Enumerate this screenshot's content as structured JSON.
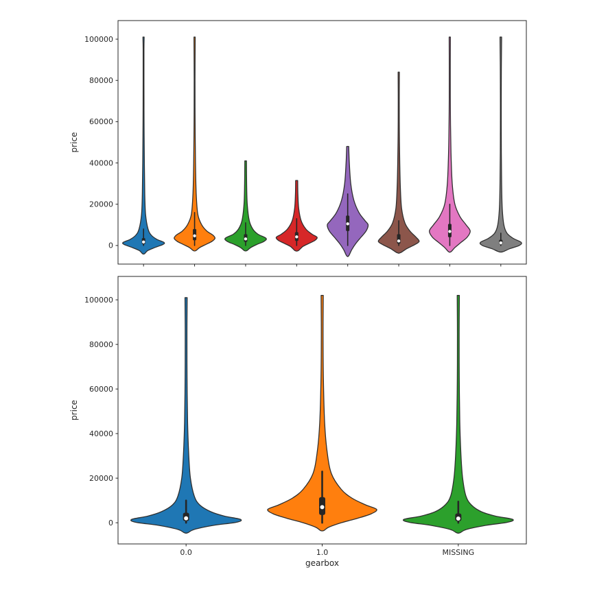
{
  "figure": {
    "background": "#ffffff",
    "text_color": "#262626"
  },
  "chart_data": [
    {
      "type": "violin",
      "name": "price-violin-8-groups",
      "title": "",
      "xlabel": "",
      "ylabel": "price",
      "ylim": [
        -9000,
        109000
      ],
      "yticks": [
        0,
        20000,
        40000,
        60000,
        80000,
        100000
      ],
      "grid": false,
      "show_x_ticklabels": false,
      "categories": [
        "",
        "",
        "",
        "",
        "",
        "",
        "",
        ""
      ],
      "edge_color": "#2f2f2f",
      "box_color": "#262626",
      "median_dot_color": "#ffffff",
      "violins": [
        {
          "color": "#1f77b4",
          "profile": [
            [
              101000,
              0.03
            ],
            [
              95000,
              0.02
            ],
            [
              80000,
              0.02
            ],
            [
              60000,
              0.025
            ],
            [
              40000,
              0.04
            ],
            [
              25000,
              0.06
            ],
            [
              15000,
              0.1
            ],
            [
              8000,
              0.22
            ],
            [
              5000,
              0.38
            ],
            [
              3000,
              0.65
            ],
            [
              1500,
              1.0
            ],
            [
              500,
              0.95
            ],
            [
              -1000,
              0.55
            ],
            [
              -2500,
              0.2
            ],
            [
              -4000,
              0.05
            ]
          ],
          "box": {
            "lo": 0,
            "q1": 700,
            "med": 1700,
            "q3": 3600,
            "hi": 8000
          }
        },
        {
          "color": "#ff7f0e",
          "profile": [
            [
              101000,
              0.03
            ],
            [
              80000,
              0.02
            ],
            [
              60000,
              0.025
            ],
            [
              40000,
              0.045
            ],
            [
              25000,
              0.08
            ],
            [
              15000,
              0.16
            ],
            [
              10000,
              0.35
            ],
            [
              7000,
              0.6
            ],
            [
              5000,
              0.9
            ],
            [
              3500,
              1.0
            ],
            [
              2000,
              0.85
            ],
            [
              500,
              0.55
            ],
            [
              -1000,
              0.25
            ],
            [
              -2500,
              0.06
            ]
          ],
          "box": {
            "lo": 0,
            "q1": 2500,
            "med": 4700,
            "q3": 8000,
            "hi": 16000
          }
        },
        {
          "color": "#2ca02c",
          "profile": [
            [
              41000,
              0.04
            ],
            [
              30000,
              0.05
            ],
            [
              20000,
              0.08
            ],
            [
              12000,
              0.18
            ],
            [
              8000,
              0.35
            ],
            [
              5500,
              0.6
            ],
            [
              3500,
              1.0
            ],
            [
              2000,
              0.9
            ],
            [
              500,
              0.55
            ],
            [
              -1000,
              0.25
            ],
            [
              -2500,
              0.06
            ]
          ],
          "box": {
            "lo": 0,
            "q1": 1700,
            "med": 3200,
            "q3": 5500,
            "hi": 11000
          }
        },
        {
          "color": "#d62728",
          "profile": [
            [
              31500,
              0.05
            ],
            [
              25000,
              0.06
            ],
            [
              18000,
              0.1
            ],
            [
              12000,
              0.22
            ],
            [
              8000,
              0.45
            ],
            [
              5500,
              0.75
            ],
            [
              4000,
              1.0
            ],
            [
              2500,
              0.9
            ],
            [
              1000,
              0.6
            ],
            [
              -500,
              0.3
            ],
            [
              -2500,
              0.08
            ]
          ],
          "box": {
            "lo": 0,
            "q1": 2200,
            "med": 4200,
            "q3": 6500,
            "hi": 13000
          }
        },
        {
          "color": "#9467bd",
          "profile": [
            [
              48000,
              0.05
            ],
            [
              40000,
              0.08
            ],
            [
              30000,
              0.15
            ],
            [
              22000,
              0.3
            ],
            [
              16000,
              0.55
            ],
            [
              12000,
              0.85
            ],
            [
              10000,
              1.0
            ],
            [
              7000,
              0.9
            ],
            [
              4000,
              0.65
            ],
            [
              1000,
              0.4
            ],
            [
              -2000,
              0.2
            ],
            [
              -5000,
              0.05
            ]
          ],
          "box": {
            "lo": 0,
            "q1": 7000,
            "med": 10500,
            "q3": 14500,
            "hi": 25000
          }
        },
        {
          "color": "#8c564b",
          "profile": [
            [
              84000,
              0.03
            ],
            [
              70000,
              0.025
            ],
            [
              55000,
              0.03
            ],
            [
              40000,
              0.05
            ],
            [
              28000,
              0.08
            ],
            [
              18000,
              0.14
            ],
            [
              11000,
              0.3
            ],
            [
              7000,
              0.55
            ],
            [
              4000,
              0.85
            ],
            [
              2000,
              1.0
            ],
            [
              500,
              0.8
            ],
            [
              -1500,
              0.4
            ],
            [
              -3500,
              0.08
            ]
          ],
          "box": {
            "lo": 0,
            "q1": 900,
            "med": 2200,
            "q3": 5500,
            "hi": 12000
          }
        },
        {
          "color": "#e377c2",
          "profile": [
            [
              101000,
              0.03
            ],
            [
              85000,
              0.025
            ],
            [
              65000,
              0.03
            ],
            [
              45000,
              0.06
            ],
            [
              30000,
              0.12
            ],
            [
              20000,
              0.25
            ],
            [
              14000,
              0.5
            ],
            [
              10000,
              0.8
            ],
            [
              7000,
              1.0
            ],
            [
              4000,
              0.85
            ],
            [
              1500,
              0.55
            ],
            [
              -1000,
              0.25
            ],
            [
              -3000,
              0.06
            ]
          ],
          "box": {
            "lo": 0,
            "q1": 4000,
            "med": 6800,
            "q3": 10500,
            "hi": 20000
          }
        },
        {
          "color": "#7f7f7f",
          "profile": [
            [
              101000,
              0.04
            ],
            [
              85000,
              0.025
            ],
            [
              65000,
              0.02
            ],
            [
              45000,
              0.025
            ],
            [
              30000,
              0.04
            ],
            [
              18000,
              0.07
            ],
            [
              10000,
              0.15
            ],
            [
              6000,
              0.3
            ],
            [
              3500,
              0.6
            ],
            [
              1500,
              1.0
            ],
            [
              0,
              0.9
            ],
            [
              -1500,
              0.45
            ],
            [
              -3000,
              0.1
            ]
          ],
          "box": {
            "lo": 0,
            "q1": 500,
            "med": 1300,
            "q3": 2800,
            "hi": 6000
          }
        }
      ]
    },
    {
      "type": "violin",
      "name": "price-violin-by-gearbox",
      "title": "",
      "xlabel": "gearbox",
      "ylabel": "price",
      "ylim": [
        -9500,
        110500
      ],
      "yticks": [
        0,
        20000,
        40000,
        60000,
        80000,
        100000
      ],
      "grid": false,
      "show_x_ticklabels": true,
      "categories": [
        "0.0",
        "1.0",
        "MISSING"
      ],
      "edge_color": "#2f2f2f",
      "box_color": "#262626",
      "median_dot_color": "#ffffff",
      "violins": [
        {
          "color": "#1f77b4",
          "profile": [
            [
              101000,
              0.02
            ],
            [
              85000,
              0.016
            ],
            [
              65000,
              0.018
            ],
            [
              45000,
              0.028
            ],
            [
              30000,
              0.05
            ],
            [
              20000,
              0.08
            ],
            [
              12000,
              0.15
            ],
            [
              8000,
              0.25
            ],
            [
              5000,
              0.45
            ],
            [
              3000,
              0.7
            ],
            [
              1500,
              1.0
            ],
            [
              200,
              0.92
            ],
            [
              -1200,
              0.5
            ],
            [
              -3000,
              0.15
            ],
            [
              -4500,
              0.03
            ]
          ],
          "box": {
            "lo": 0,
            "q1": 800,
            "med": 2000,
            "q3": 4500,
            "hi": 10000
          }
        },
        {
          "color": "#ff7f0e",
          "profile": [
            [
              102000,
              0.02
            ],
            [
              85000,
              0.016
            ],
            [
              65000,
              0.022
            ],
            [
              45000,
              0.045
            ],
            [
              32000,
              0.09
            ],
            [
              22000,
              0.17
            ],
            [
              15000,
              0.35
            ],
            [
              11000,
              0.55
            ],
            [
              8000,
              0.8
            ],
            [
              6000,
              1.0
            ],
            [
              4000,
              0.9
            ],
            [
              2000,
              0.65
            ],
            [
              0,
              0.35
            ],
            [
              -2000,
              0.12
            ],
            [
              -3500,
              0.03
            ]
          ],
          "box": {
            "lo": 0,
            "q1": 3500,
            "med": 7000,
            "q3": 11500,
            "hi": 23000
          }
        },
        {
          "color": "#2ca02c",
          "profile": [
            [
              102000,
              0.02
            ],
            [
              85000,
              0.016
            ],
            [
              65000,
              0.018
            ],
            [
              45000,
              0.028
            ],
            [
              30000,
              0.05
            ],
            [
              20000,
              0.08
            ],
            [
              12000,
              0.14
            ],
            [
              8000,
              0.24
            ],
            [
              5000,
              0.42
            ],
            [
              3000,
              0.68
            ],
            [
              1500,
              1.0
            ],
            [
              200,
              0.9
            ],
            [
              -1200,
              0.5
            ],
            [
              -3000,
              0.15
            ],
            [
              -4500,
              0.03
            ]
          ],
          "box": {
            "lo": 0,
            "q1": 700,
            "med": 1900,
            "q3": 4200,
            "hi": 9500
          }
        }
      ]
    }
  ]
}
